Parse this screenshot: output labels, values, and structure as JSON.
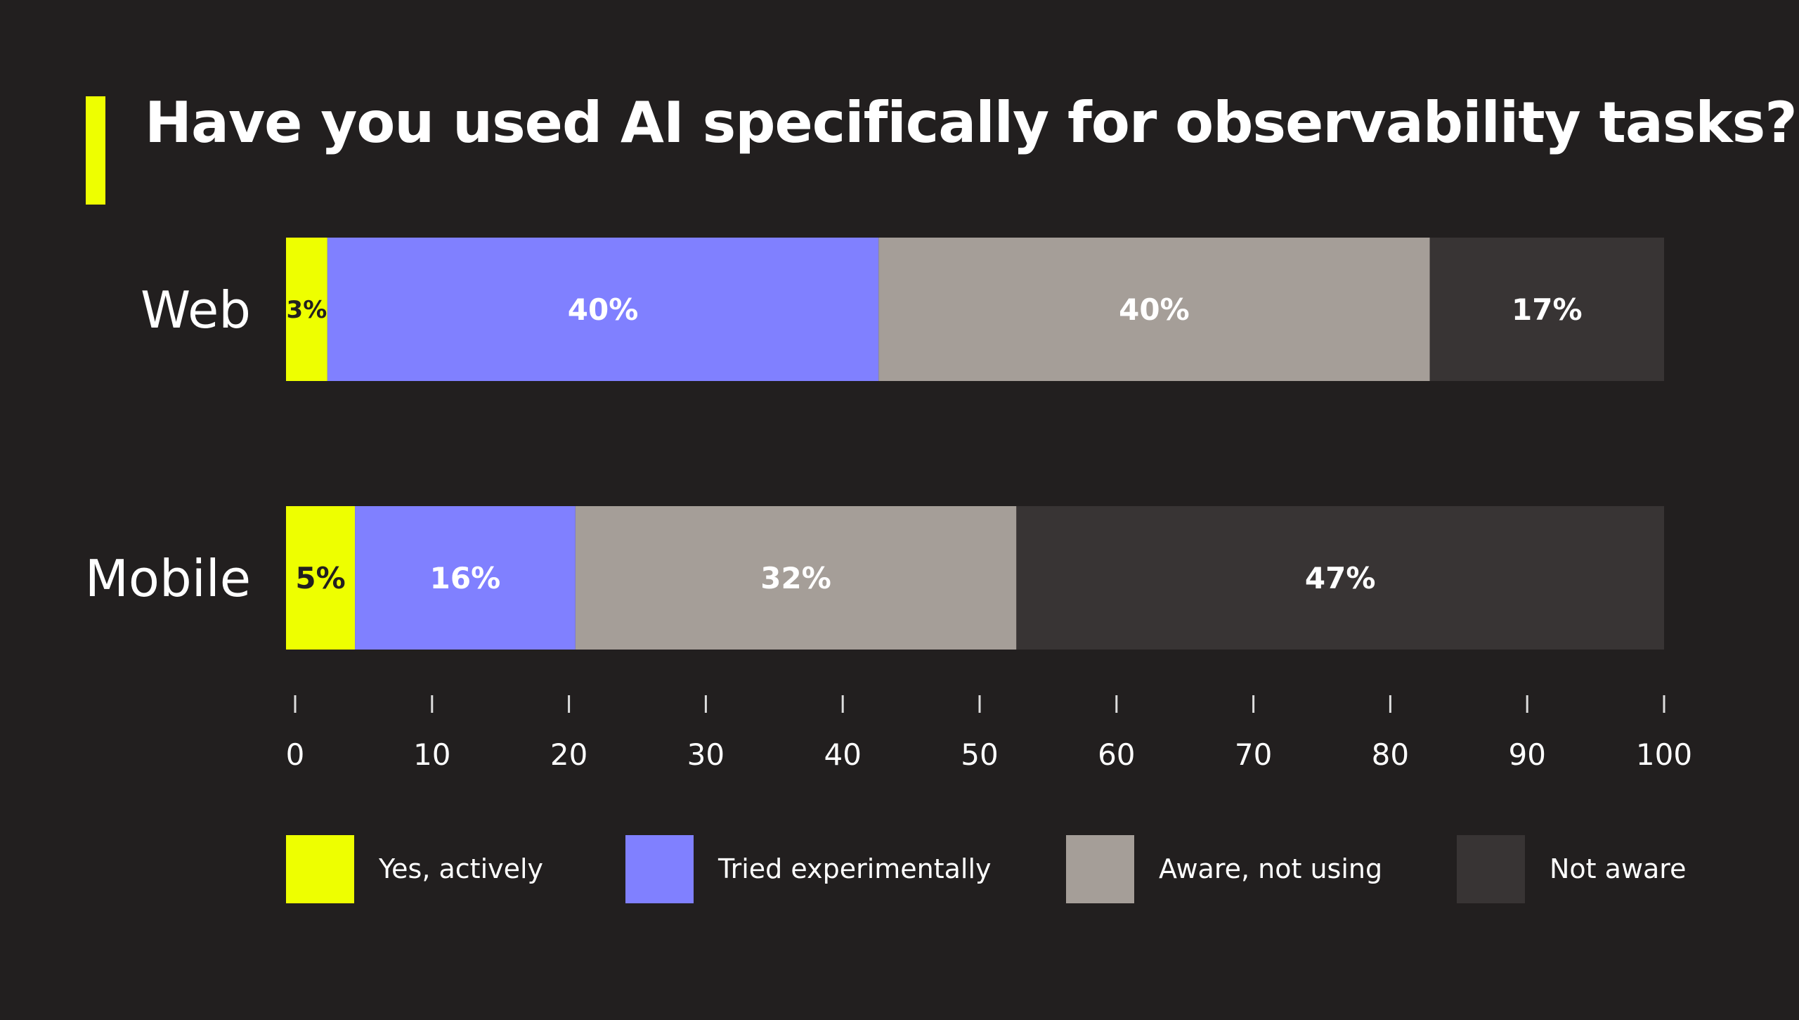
{
  "title": "Have you used AI specifically for observability tasks?",
  "colors": {
    "background": "#221f1f",
    "accent": "#eeff00"
  },
  "chart_data": {
    "type": "bar",
    "orientation": "horizontal",
    "stacked": true,
    "title": "Have you used AI specifically for observability tasks?",
    "categories": [
      "Web",
      "Mobile"
    ],
    "series": [
      {
        "name": "Yes, actively",
        "color": "#eeff00",
        "label_color": "#221f1f",
        "values": [
          3,
          5
        ]
      },
      {
        "name": "Tried experimentally",
        "color": "#8080ff",
        "label_color": "#ffffff",
        "values": [
          40,
          16
        ]
      },
      {
        "name": "Aware, not using",
        "color": "#a59e98",
        "label_color": "#ffffff",
        "values": [
          40,
          32
        ]
      },
      {
        "name": "Not aware",
        "color": "#383434",
        "label_color": "#ffffff",
        "values": [
          17,
          47
        ]
      }
    ],
    "value_suffix": "%",
    "xlim": [
      0,
      100
    ],
    "xticks": [
      0,
      10,
      20,
      30,
      40,
      50,
      60,
      70,
      80,
      90,
      100
    ],
    "grid": false,
    "legend_position": "bottom"
  }
}
